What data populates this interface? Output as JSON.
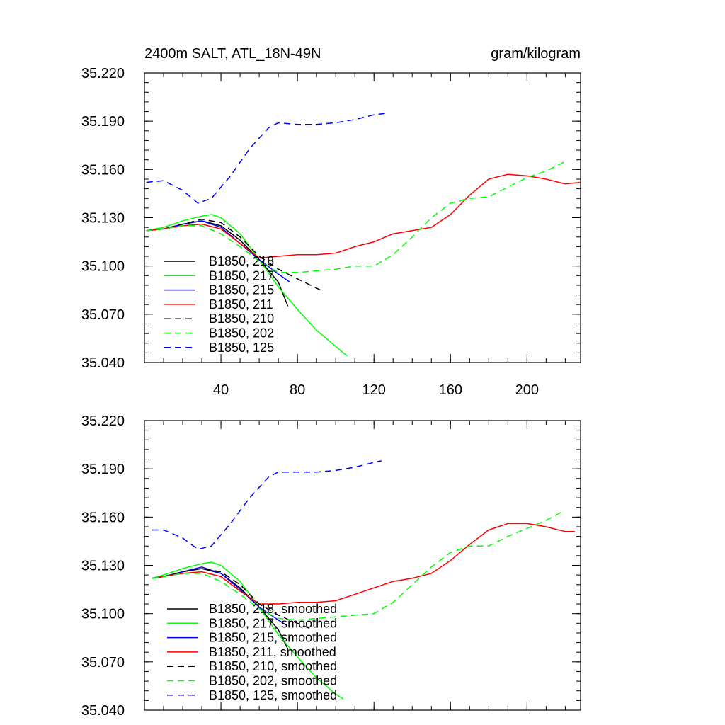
{
  "header": {
    "title_left": "2400m SALT, ATL_18N-49N",
    "title_right": "gram/kilogram"
  },
  "colors": {
    "black": "#000000",
    "green": "#00ff00",
    "blue": "#0000ff",
    "red": "#ff0000",
    "dark_blue": "#0000ff"
  },
  "chart_data": [
    {
      "type": "line",
      "title": "2400m SALT, ATL_18N-49N",
      "units": "gram/kilogram",
      "xlim": [
        0,
        228
      ],
      "ylim": [
        35.04,
        35.22
      ],
      "xticks": [
        40,
        80,
        120,
        160,
        200
      ],
      "xtick_labels": [
        "40",
        "80",
        "120",
        "160",
        "200"
      ],
      "yticks": [
        35.04,
        35.07,
        35.1,
        35.13,
        35.16,
        35.19,
        35.22
      ],
      "ytick_labels": [
        "35.040",
        "35.070",
        "35.100",
        "35.130",
        "35.160",
        "35.190",
        "35.220"
      ],
      "legend_position": "lower-left",
      "series": [
        {
          "name": "B1850, 218",
          "color": "#000000",
          "dash": false,
          "x": [
            1,
            10,
            20,
            30,
            40,
            50,
            60,
            70,
            75
          ],
          "y": [
            35.122,
            35.123,
            35.126,
            35.128,
            35.125,
            35.116,
            35.104,
            35.09,
            35.075
          ]
        },
        {
          "name": "B1850, 217",
          "color": "#00ff00",
          "dash": false,
          "x": [
            1,
            10,
            20,
            30,
            35,
            40,
            50,
            60,
            70,
            80,
            90,
            100,
            106
          ],
          "y": [
            35.122,
            35.124,
            35.128,
            35.131,
            35.132,
            35.13,
            35.12,
            35.104,
            35.087,
            35.073,
            35.06,
            35.05,
            35.044
          ]
        },
        {
          "name": "B1850, 215",
          "color": "#0000ff",
          "dash": false,
          "x": [
            1,
            10,
            20,
            30,
            40,
            50,
            60,
            70,
            76
          ],
          "y": [
            35.122,
            35.123,
            35.126,
            35.128,
            35.124,
            35.114,
            35.104,
            35.095,
            35.09
          ]
        },
        {
          "name": "B1850, 211",
          "color": "#ff0000",
          "dash": false,
          "x": [
            1,
            10,
            20,
            30,
            40,
            50,
            60,
            70,
            80,
            90,
            100,
            110,
            120,
            130,
            140,
            150,
            160,
            170,
            180,
            190,
            200,
            210,
            220,
            228
          ],
          "y": [
            35.122,
            35.123,
            35.125,
            35.126,
            35.123,
            35.114,
            35.105,
            35.106,
            35.107,
            35.107,
            35.108,
            35.112,
            35.115,
            35.12,
            35.122,
            35.124,
            35.132,
            35.144,
            35.154,
            35.157,
            35.156,
            35.154,
            35.151,
            35.152
          ]
        },
        {
          "name": "B1850, 210",
          "color": "#000000",
          "dash": true,
          "x": [
            1,
            10,
            20,
            30,
            40,
            50,
            60,
            70,
            80,
            92
          ],
          "y": [
            35.122,
            35.123,
            35.126,
            35.129,
            35.127,
            35.118,
            35.106,
            35.098,
            35.092,
            35.085
          ]
        },
        {
          "name": "B1850, 202",
          "color": "#00ff00",
          "dash": true,
          "x": [
            1,
            10,
            20,
            30,
            40,
            50,
            60,
            70,
            80,
            90,
            100,
            110,
            120,
            130,
            140,
            150,
            160,
            170,
            180,
            190,
            200,
            210,
            220
          ],
          "y": [
            35.122,
            35.123,
            35.125,
            35.125,
            35.12,
            35.112,
            35.103,
            35.096,
            35.096,
            35.097,
            35.098,
            35.1,
            35.1,
            35.107,
            35.118,
            35.13,
            35.139,
            35.142,
            35.143,
            35.149,
            35.155,
            35.159,
            35.165
          ]
        },
        {
          "name": "B1850, 125",
          "color": "#0000ff",
          "dash": true,
          "x": [
            1,
            10,
            20,
            28,
            35,
            45,
            55,
            65,
            70,
            80,
            90,
            100,
            110,
            120,
            127
          ],
          "y": [
            35.152,
            35.153,
            35.147,
            35.139,
            35.142,
            35.156,
            35.173,
            35.186,
            35.189,
            35.188,
            35.188,
            35.189,
            35.191,
            35.194,
            35.195
          ]
        }
      ]
    },
    {
      "type": "line",
      "title": "",
      "xlim": [
        0,
        228
      ],
      "ylim": [
        35.04,
        35.22
      ],
      "xticks": [
        40,
        80,
        120,
        160,
        200
      ],
      "yticks": [
        35.04,
        35.07,
        35.1,
        35.13,
        35.16,
        35.19,
        35.22
      ],
      "ytick_labels": [
        "35.040",
        "35.070",
        "35.100",
        "35.130",
        "35.160",
        "35.190",
        "35.220"
      ],
      "legend_position": "lower-left",
      "series": [
        {
          "name": "B1850, 218, smoothed",
          "color": "#000000",
          "dash": false,
          "x": [
            4,
            10,
            20,
            30,
            40,
            50,
            60,
            70,
            75
          ],
          "y": [
            35.122,
            35.123,
            35.126,
            35.128,
            35.125,
            35.116,
            35.104,
            35.09,
            35.078
          ]
        },
        {
          "name": "B1850, 217, smoothed",
          "color": "#00ff00",
          "dash": false,
          "x": [
            4,
            10,
            20,
            30,
            35,
            40,
            50,
            60,
            70,
            80,
            90,
            100,
            104
          ],
          "y": [
            35.122,
            35.124,
            35.128,
            35.131,
            35.132,
            35.13,
            35.12,
            35.104,
            35.087,
            35.073,
            35.06,
            35.05,
            35.047
          ]
        },
        {
          "name": "B1850, 215, smoothed",
          "color": "#0000ff",
          "dash": false,
          "x": [
            4,
            10,
            20,
            30,
            40,
            50,
            60,
            70,
            74
          ],
          "y": [
            35.122,
            35.123,
            35.126,
            35.129,
            35.125,
            35.115,
            35.104,
            35.096,
            35.093
          ]
        },
        {
          "name": "B1850, 211, smoothed",
          "color": "#ff0000",
          "dash": false,
          "x": [
            4,
            10,
            20,
            30,
            40,
            50,
            60,
            70,
            80,
            90,
            100,
            110,
            120,
            130,
            140,
            150,
            160,
            170,
            180,
            190,
            200,
            210,
            220,
            225
          ],
          "y": [
            35.122,
            35.123,
            35.125,
            35.126,
            35.123,
            35.114,
            35.106,
            35.106,
            35.107,
            35.107,
            35.108,
            35.112,
            35.116,
            35.12,
            35.122,
            35.125,
            35.133,
            35.143,
            35.152,
            35.156,
            35.156,
            35.154,
            35.151,
            35.151
          ]
        },
        {
          "name": "B1850, 210, smoothed",
          "color": "#000000",
          "dash": true,
          "x": [
            4,
            10,
            20,
            30,
            40,
            50,
            60,
            70,
            80,
            88
          ],
          "y": [
            35.122,
            35.123,
            35.126,
            35.128,
            35.126,
            35.118,
            35.106,
            35.099,
            35.094,
            35.09
          ]
        },
        {
          "name": "B1850, 202, smoothed",
          "color": "#00ff00",
          "dash": true,
          "x": [
            4,
            10,
            20,
            30,
            40,
            50,
            60,
            70,
            80,
            90,
            100,
            110,
            120,
            130,
            140,
            150,
            160,
            170,
            180,
            190,
            200,
            210,
            218
          ],
          "y": [
            35.122,
            35.123,
            35.125,
            35.125,
            35.12,
            35.112,
            35.103,
            35.097,
            35.096,
            35.097,
            35.098,
            35.099,
            35.1,
            35.107,
            35.118,
            35.129,
            35.138,
            35.142,
            35.142,
            35.148,
            35.153,
            35.158,
            35.163
          ]
        },
        {
          "name": "B1850, 125, smoothed",
          "color": "#0000ff",
          "dash": true,
          "x": [
            4,
            10,
            20,
            28,
            35,
            45,
            55,
            65,
            70,
            80,
            90,
            100,
            110,
            120,
            124
          ],
          "y": [
            35.152,
            35.152,
            35.147,
            35.14,
            35.142,
            35.156,
            35.172,
            35.185,
            35.188,
            35.188,
            35.188,
            35.189,
            35.191,
            35.194,
            35.195
          ]
        }
      ]
    }
  ]
}
